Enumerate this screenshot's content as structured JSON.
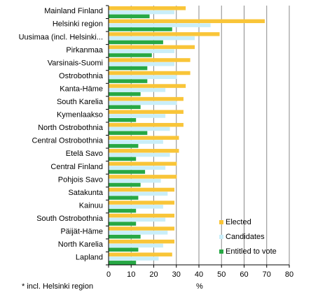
{
  "chart_data": {
    "type": "bar",
    "orientation": "horizontal",
    "categories": [
      "Mainland Finland",
      "Helsinki region",
      "Uusimaa (incl. Helsinki...",
      "Pirkanmaa",
      "Varsinais-Suomi",
      "Ostrobothnia",
      "Kanta-Häme",
      "South Karelia",
      "Kymenlaakso",
      "North Ostrobothnia",
      "Central Ostrobothnia",
      "Etelä Savo",
      "Central Finland",
      "Pohjois Savo",
      "Satakunta",
      "Kainuu",
      "South Ostrobothnia",
      "Päijät-Häme",
      "North Karelia",
      "Lapland"
    ],
    "series": [
      {
        "name": "Elected",
        "color": "#f9c538",
        "values": [
          34,
          69,
          49,
          38,
          36,
          36,
          34,
          33,
          33,
          33,
          31,
          31,
          30,
          30,
          29,
          29,
          29,
          29,
          29,
          28
        ]
      },
      {
        "name": "Candidates",
        "color": "#c9eef9",
        "values": [
          29,
          45,
          38,
          29,
          29,
          30,
          25,
          30,
          25,
          27,
          24,
          27,
          25,
          23,
          26,
          24,
          25,
          26,
          24,
          22
        ]
      },
      {
        "name": "Entitled to vote",
        "color": "#27a844",
        "values": [
          18,
          28,
          24,
          19,
          17,
          17,
          14,
          14,
          12,
          17,
          13,
          12,
          16,
          14,
          13,
          12,
          12,
          14,
          13,
          12
        ]
      }
    ],
    "xlim": [
      0,
      80
    ],
    "xticks": [
      0,
      10,
      20,
      30,
      40,
      50,
      60,
      70,
      80
    ],
    "xlabel": "%",
    "grid": "vertical",
    "legend_position": "bottom-right",
    "footnote": "* incl.  Helsinki region"
  }
}
